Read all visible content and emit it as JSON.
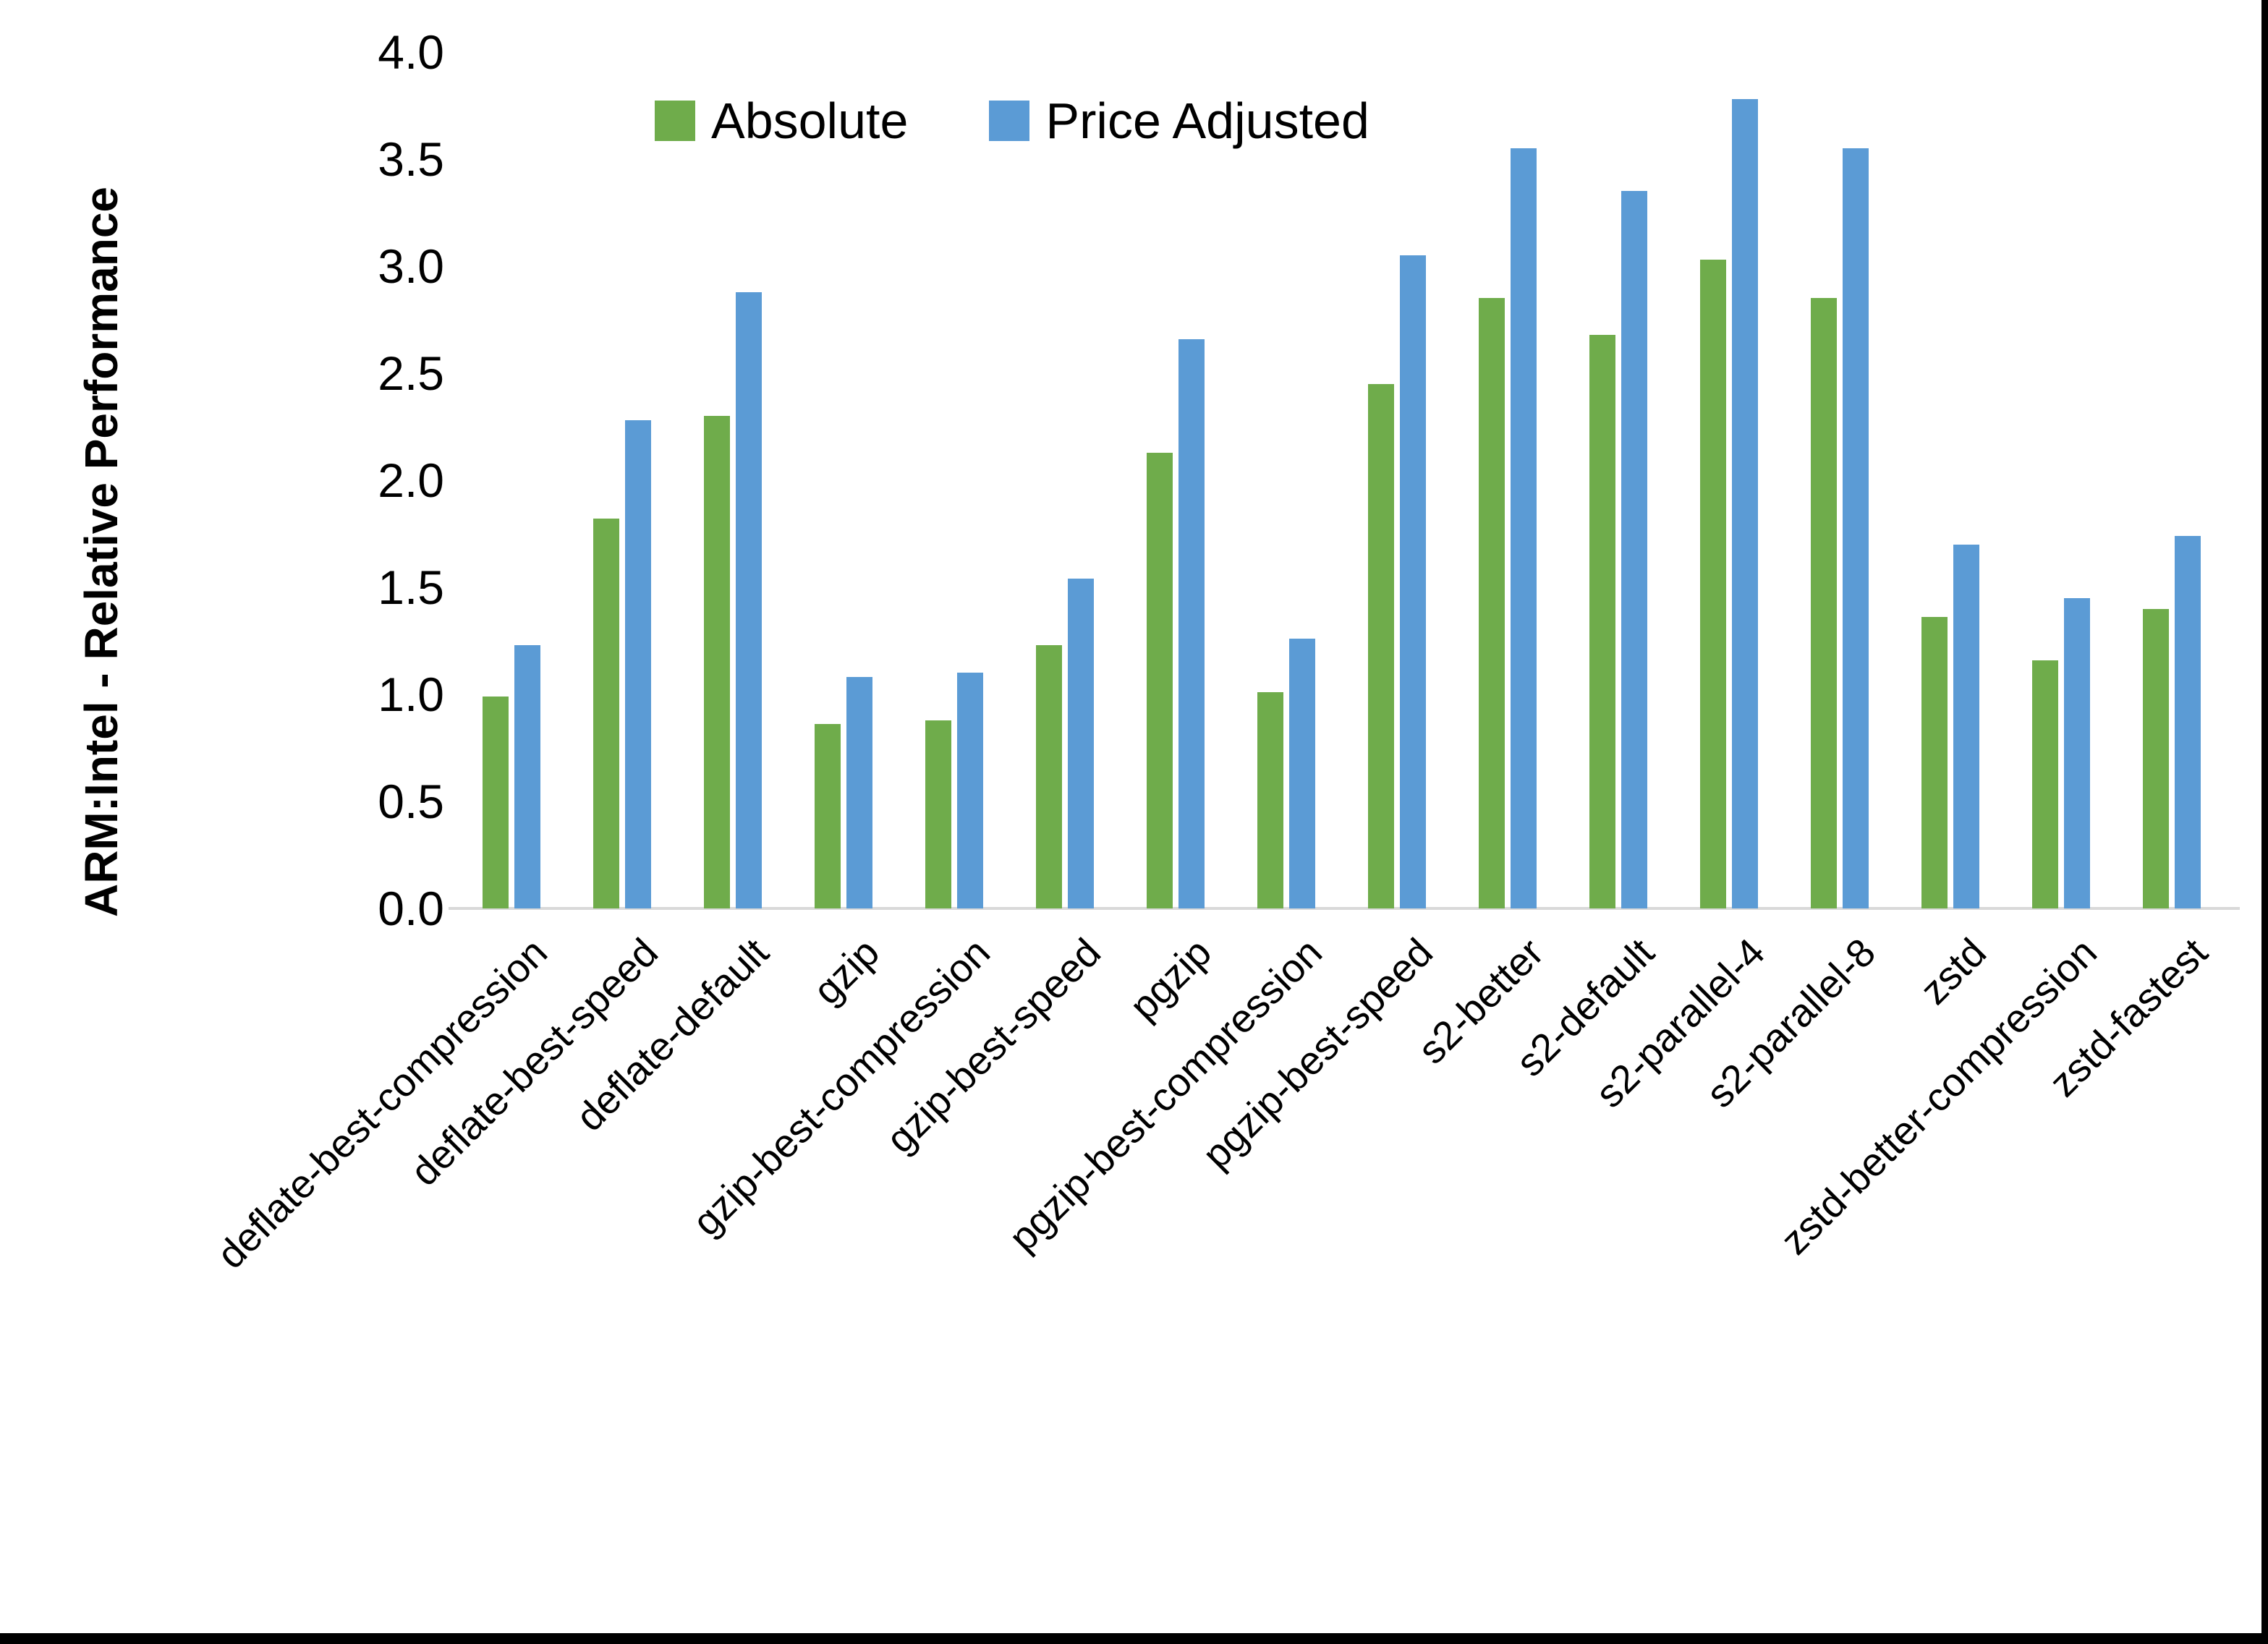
{
  "chart_data": {
    "type": "bar",
    "title": "",
    "ylabel": "ARM:Intel - Relative Performance",
    "xlabel": "",
    "ylim": [
      0.0,
      4.0
    ],
    "ytick_step": 0.5,
    "y_ticks": [
      "0.0",
      "0.5",
      "1.0",
      "1.5",
      "2.0",
      "2.5",
      "3.0",
      "3.5",
      "4.0"
    ],
    "grid": "off",
    "legend_position": "top-center",
    "categories": [
      "deflate-best-compression",
      "deflate-best-speed",
      "deflate-default",
      "gzip",
      "gzip-best-compression",
      "gzip-best-speed",
      "pgzip",
      "pgzip-best-compression",
      "pgzip-best-speed",
      "s2-better",
      "s2-default",
      "s2-parallel-4",
      "s2-parallel-8",
      "zstd",
      "zstd-better-compression",
      "zstd-fastest"
    ],
    "series": [
      {
        "name": "Absolute",
        "color": "#6FAC4B",
        "values": [
          0.99,
          1.82,
          2.3,
          0.86,
          0.88,
          1.23,
          2.13,
          1.01,
          2.45,
          2.85,
          2.68,
          3.03,
          2.85,
          1.36,
          1.16,
          1.4
        ]
      },
      {
        "name": "Price Adjusted",
        "color": "#5B9BD5",
        "values": [
          1.23,
          2.28,
          2.88,
          1.08,
          1.1,
          1.54,
          2.66,
          1.26,
          3.05,
          3.55,
          3.35,
          3.78,
          3.55,
          1.7,
          1.45,
          1.74
        ]
      }
    ],
    "axis_line_color": "#D9D9D9",
    "text_color": "#000000"
  },
  "legend": {
    "absolute_label": "Absolute",
    "price_adjusted_label": "Price Adjusted"
  }
}
